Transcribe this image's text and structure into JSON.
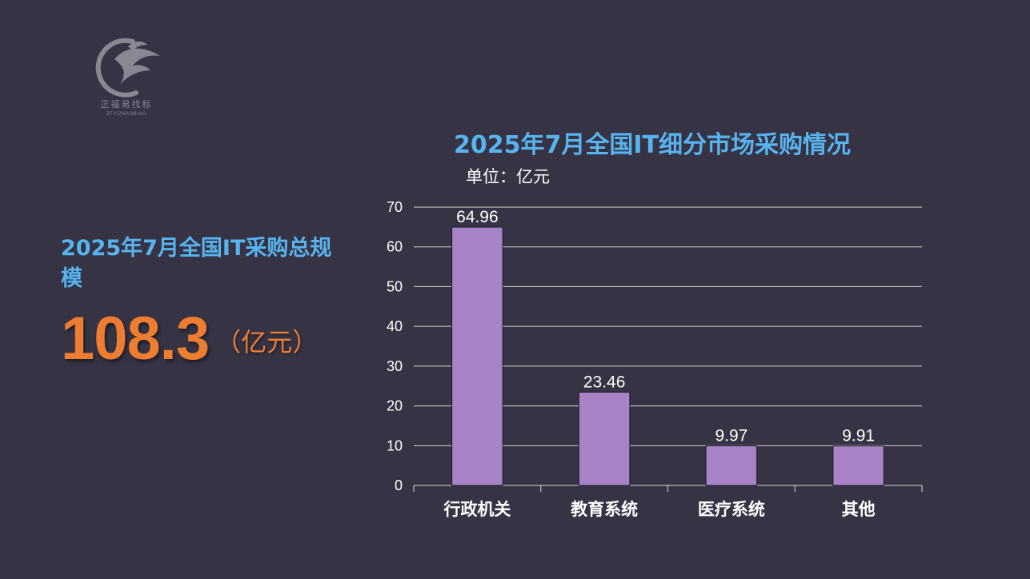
{
  "logo": {
    "name_cn": "正福易找标",
    "name_en": "ZFYIZHAOBIAO",
    "icon": "eagle-logo-icon"
  },
  "summary": {
    "title": "2025年7月全国IT采购总规模",
    "value": "108.3",
    "unit": "（亿元）"
  },
  "colors": {
    "background": "#363345",
    "title": "#58b4ef",
    "highlight": "#ed7d31",
    "bar": "#a983c7",
    "text": "#ffffff"
  },
  "chart_data": {
    "type": "bar",
    "title": "2025年7月全国IT细分市场采购情况",
    "unit_note": "单位：亿元",
    "categories": [
      "行政机关",
      "教育系统",
      "医疗系统",
      "其他"
    ],
    "values": [
      64.96,
      23.46,
      9.97,
      9.91
    ],
    "data_labels": [
      "64.96",
      "23.46",
      "9.97",
      "9.91"
    ],
    "ylim": [
      0,
      70
    ],
    "yticks": [
      0,
      10,
      20,
      30,
      40,
      50,
      60,
      70
    ],
    "grid": true,
    "legend": false
  }
}
